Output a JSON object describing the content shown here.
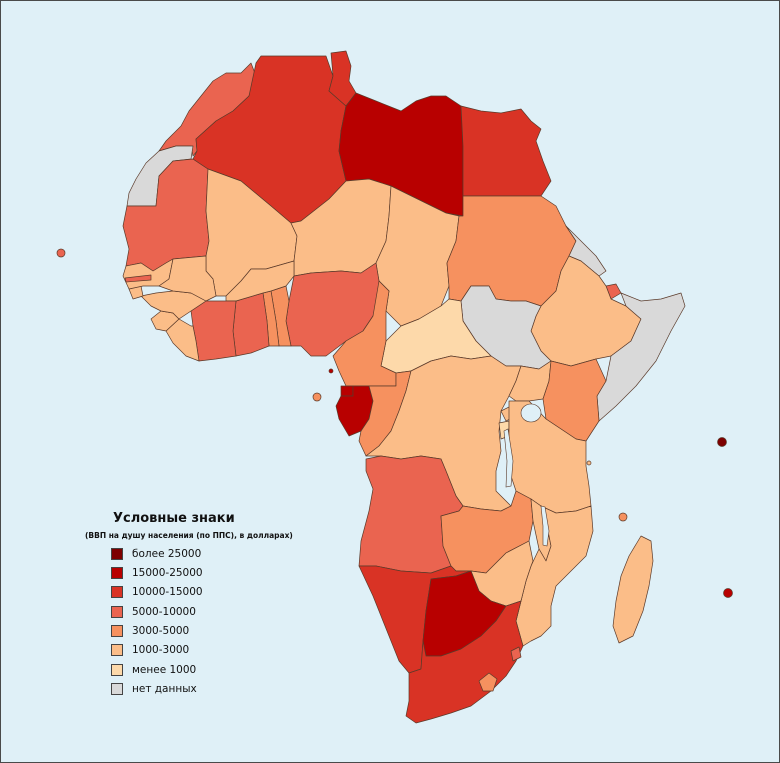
{
  "legend": {
    "title": "Условные знаки",
    "subtitle": "(ВВП на душу населения (по ППС), в долларах)",
    "items": [
      {
        "label": "более 25000",
        "color": "#7d0000"
      },
      {
        "label": "15000-25000",
        "color": "#b80000"
      },
      {
        "label": "10000-15000",
        "color": "#d93325"
      },
      {
        "label": "5000-10000",
        "color": "#ea6450"
      },
      {
        "label": "3000-5000",
        "color": "#f6915f"
      },
      {
        "label": "1000-3000",
        "color": "#fbbd88"
      },
      {
        "label": "менее 1000",
        "color": "#fdd9aa"
      },
      {
        "label": "нет данных",
        "color": "#d9d9d9"
      }
    ]
  },
  "colors": {
    "ocean": "#dff0f7",
    "border": "#5a3a2a",
    "frame": "#4a4a4a"
  }
}
